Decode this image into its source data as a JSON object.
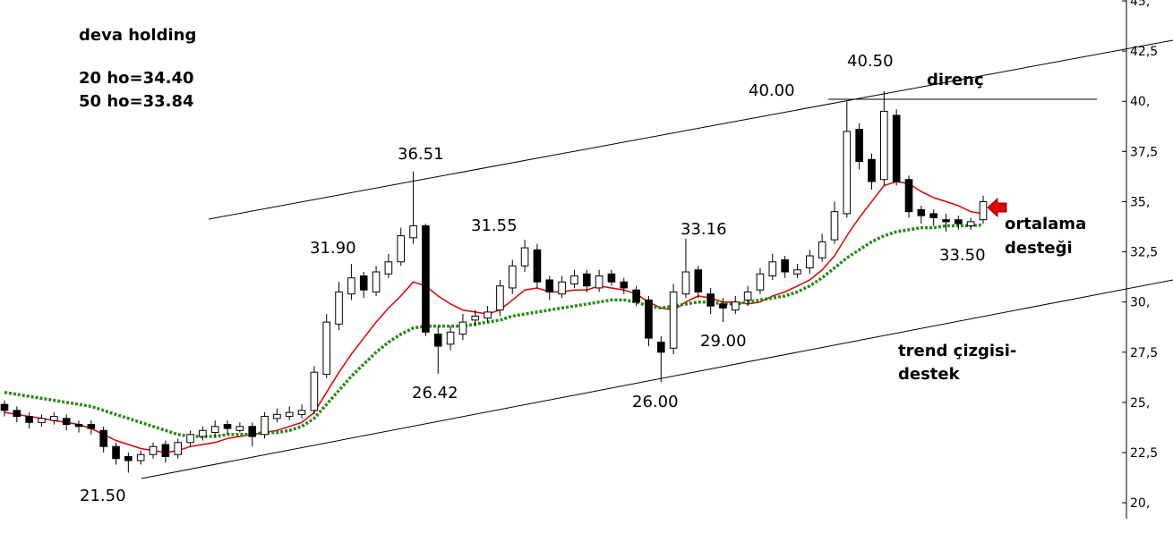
{
  "chart_data": {
    "type": "candlestick",
    "title": "deva holding",
    "categories": [
      null,
      null,
      null,
      null,
      null,
      null,
      null,
      null,
      null,
      null,
      null,
      null,
      null,
      null,
      null,
      null,
      null,
      null,
      null,
      null,
      null,
      null,
      null,
      null,
      null,
      null,
      null,
      null,
      null,
      null,
      null,
      null,
      null,
      null,
      null,
      null,
      null,
      null,
      null,
      null,
      null,
      null,
      null,
      null,
      null,
      null,
      null,
      null,
      null,
      null,
      null,
      null,
      null,
      null,
      null,
      null,
      null,
      null,
      null,
      null,
      null,
      null,
      null,
      null,
      null,
      null,
      null,
      null,
      null,
      null,
      null,
      null,
      null,
      null,
      null,
      null,
      null,
      null,
      null,
      null
    ],
    "open": [
      24.9,
      24.6,
      24.3,
      24.0,
      24.1,
      24.2,
      23.9,
      23.9,
      23.6,
      22.8,
      22.3,
      22.1,
      22.4,
      22.9,
      22.4,
      23.0,
      23.3,
      23.5,
      23.9,
      23.6,
      23.8,
      23.4,
      24.2,
      24.3,
      24.4,
      24.6,
      26.4,
      28.9,
      30.4,
      31.3,
      30.5,
      31.4,
      32.0,
      33.2,
      33.8,
      28.4,
      27.9,
      28.4,
      29.1,
      29.2,
      29.6,
      30.7,
      31.8,
      32.6,
      31.1,
      30.4,
      30.9,
      31.4,
      30.7,
      31.4,
      31.0,
      30.6,
      30.1,
      28.0,
      27.7,
      30.4,
      31.6,
      30.4,
      29.9,
      29.6,
      30.1,
      30.6,
      31.3,
      32.1,
      31.4,
      31.7,
      32.2,
      33.1,
      34.4,
      38.6,
      37.1,
      36.1,
      39.3,
      36.1,
      34.6,
      34.4,
      34.1,
      34.1,
      33.8,
      34.1
    ],
    "high": [
      25.1,
      24.8,
      24.5,
      24.4,
      24.5,
      24.4,
      24.1,
      24.1,
      23.8,
      23.0,
      22.5,
      22.6,
      23.0,
      23.1,
      23.2,
      23.6,
      23.8,
      24.1,
      24.1,
      24.0,
      24.0,
      24.5,
      24.7,
      24.8,
      24.9,
      26.8,
      29.4,
      31.0,
      31.9,
      31.5,
      31.8,
      32.4,
      33.7,
      36.51,
      33.9,
      28.8,
      28.8,
      29.4,
      29.6,
      29.8,
      31.1,
      32.1,
      33.1,
      32.9,
      31.3,
      31.3,
      31.6,
      31.6,
      31.6,
      31.6,
      31.2,
      30.8,
      30.3,
      28.3,
      30.9,
      33.16,
      31.8,
      30.7,
      30.2,
      30.3,
      30.8,
      31.7,
      32.4,
      32.3,
      31.9,
      32.6,
      33.4,
      35.0,
      40.0,
      38.9,
      37.4,
      40.5,
      39.6,
      36.3,
      34.8,
      34.6,
      34.4,
      34.3,
      34.2,
      35.3
    ],
    "low": [
      24.3,
      24.0,
      23.7,
      23.8,
      23.9,
      23.6,
      23.5,
      23.4,
      22.5,
      21.9,
      21.5,
      21.9,
      22.2,
      22.0,
      22.2,
      22.8,
      23.1,
      23.3,
      23.4,
      23.5,
      22.8,
      23.2,
      24.0,
      24.1,
      24.2,
      24.4,
      26.2,
      28.6,
      30.1,
      30.2,
      30.3,
      31.2,
      31.8,
      32.9,
      28.3,
      26.42,
      27.6,
      28.1,
      28.8,
      29.0,
      29.3,
      30.4,
      31.5,
      30.7,
      30.1,
      30.2,
      30.7,
      30.5,
      30.5,
      30.8,
      30.4,
      29.8,
      27.8,
      26.0,
      27.4,
      30.2,
      30.2,
      29.4,
      29.0,
      29.4,
      29.8,
      30.4,
      31.1,
      31.2,
      31.2,
      31.4,
      32.0,
      32.9,
      34.2,
      36.6,
      35.6,
      35.8,
      35.8,
      34.2,
      33.9,
      33.8,
      33.5,
      33.6,
      33.6,
      33.9
    ],
    "close": [
      24.6,
      24.3,
      24.0,
      24.2,
      24.3,
      23.9,
      23.8,
      23.7,
      22.8,
      22.2,
      22.1,
      22.4,
      22.8,
      22.3,
      23.0,
      23.4,
      23.6,
      23.8,
      23.7,
      23.8,
      23.3,
      24.3,
      24.4,
      24.5,
      24.6,
      26.5,
      29.0,
      30.5,
      31.2,
      30.6,
      31.5,
      32.0,
      33.3,
      33.8,
      28.5,
      27.8,
      28.5,
      29.0,
      29.3,
      29.5,
      30.8,
      31.8,
      32.7,
      31.0,
      30.5,
      31.0,
      31.3,
      30.8,
      31.3,
      31.0,
      30.7,
      30.0,
      28.2,
      27.5,
      30.5,
      31.5,
      30.5,
      29.8,
      29.7,
      30.0,
      30.5,
      31.4,
      32.0,
      31.5,
      31.6,
      32.3,
      33.0,
      34.5,
      38.5,
      37.0,
      36.0,
      39.5,
      36.0,
      34.5,
      34.3,
      34.2,
      34.0,
      33.9,
      34.0,
      35.0
    ],
    "up_color": "#ffffff",
    "down_color": "#000000",
    "series": [
      {
        "color": "#e00000",
        "style": "solid",
        "values": [
          24.5,
          24.4,
          24.3,
          24.2,
          24.1,
          24.0,
          23.9,
          23.7,
          23.4,
          23.1,
          22.9,
          22.7,
          22.6,
          22.5,
          22.6,
          22.8,
          22.9,
          23.0,
          23.2,
          23.3,
          23.4,
          23.5,
          23.6,
          23.8,
          24.0,
          24.5,
          25.5,
          26.5,
          27.4,
          28.2,
          29.0,
          29.7,
          30.3,
          31.0,
          30.8,
          30.3,
          29.9,
          29.6,
          29.5,
          29.4,
          29.6,
          30.1,
          30.6,
          30.7,
          30.5,
          30.5,
          30.6,
          30.6,
          30.8,
          30.7,
          30.6,
          30.4,
          30.0,
          29.7,
          29.6,
          30.0,
          30.3,
          30.2,
          30.0,
          30.0,
          29.9,
          30.0,
          30.3,
          30.5,
          30.8,
          31.1,
          31.6,
          32.3,
          33.3,
          34.2,
          35.0,
          35.8,
          36.0,
          35.9,
          35.5,
          35.2,
          35.0,
          34.8,
          34.5,
          34.4
        ]
      },
      {
        "color": "#2a8a1a",
        "style": "dotted",
        "values": [
          25.5,
          25.4,
          25.3,
          25.2,
          25.1,
          25.0,
          24.9,
          24.8,
          24.6,
          24.4,
          24.2,
          24.0,
          23.8,
          23.6,
          23.4,
          23.3,
          23.3,
          23.3,
          23.4,
          23.4,
          23.4,
          23.5,
          23.5,
          23.6,
          23.8,
          24.2,
          24.9,
          25.6,
          26.3,
          26.9,
          27.5,
          28.0,
          28.4,
          28.7,
          28.8,
          28.8,
          28.8,
          28.8,
          28.9,
          29.0,
          29.1,
          29.3,
          29.4,
          29.5,
          29.6,
          29.7,
          29.8,
          29.9,
          30.0,
          30.1,
          30.1,
          30.0,
          29.8,
          29.7,
          29.8,
          29.9,
          30.0,
          30.0,
          29.9,
          29.9,
          30.0,
          30.1,
          30.2,
          30.3,
          30.5,
          30.8,
          31.2,
          31.7,
          32.2,
          32.6,
          33.0,
          33.3,
          33.5,
          33.6,
          33.7,
          33.7,
          33.8,
          33.8,
          33.8,
          33.84
        ]
      }
    ],
    "ylim": [
      18,
      45
    ],
    "yticks": [
      {
        "value": 20,
        "label": "20,"
      },
      {
        "value": 22.5,
        "label": "22,5"
      },
      {
        "value": 25,
        "label": "25,"
      },
      {
        "value": 27.5,
        "label": "27,5"
      },
      {
        "value": 30,
        "label": "30,"
      },
      {
        "value": 32.5,
        "label": "32,5"
      },
      {
        "value": 35,
        "label": "35,"
      },
      {
        "value": 37.5,
        "label": "37,5"
      },
      {
        "value": 40,
        "label": "40,"
      },
      {
        "value": 42.5,
        "label": "42,5"
      },
      {
        "value": 45,
        "label": "45,"
      }
    ],
    "axis_side": "right",
    "annotations": [
      "20 ho=34.40",
      "50 ho=33.84",
      "36.51",
      "31.90",
      "31.55",
      "33.16",
      "40.00",
      "40.50",
      "direnç",
      "26.42",
      "26.00",
      "29.00",
      "21.50",
      "33.50",
      "ortalama",
      "desteği",
      "trend çizgisi-",
      "destek"
    ]
  }
}
